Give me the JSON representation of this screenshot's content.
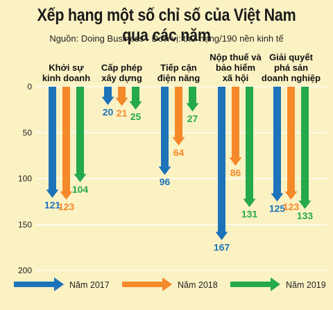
{
  "title": "Xếp hạng một số chỉ số của Việt Nam qua các năm",
  "subtitle": "Nguồn: Doing Business - Đơn vị: thứ hạng/190 nền kinh tế",
  "colors": {
    "Năm 2017": "#1d73b9",
    "Năm 2018": "#f4892a",
    "Năm 2019": "#24a94b",
    "background": "#fbf2c4",
    "grid": "#ffffff"
  },
  "chart_data": {
    "type": "bar",
    "orientation": "vertical-down",
    "categories": [
      "Khởi sự kinh doanh",
      "Cấp phép xây dựng",
      "Tiếp cận điện năng",
      "Nộp thuế và bảo hiểm xã hội",
      "Giải quyết phá sản doanh nghiệp"
    ],
    "category_lines": [
      [
        "Khởi sự",
        "kinh doanh"
      ],
      [
        "Cấp phép",
        "xây dựng"
      ],
      [
        "Tiếp cận",
        "điện năng"
      ],
      [
        "Nộp thuế và",
        "bảo hiểm",
        "xã hội"
      ],
      [
        "Giải quyết",
        "phá sản",
        "doanh nghiệp"
      ]
    ],
    "series": [
      {
        "name": "Năm 2017",
        "values": [
          121,
          20,
          96,
          167,
          125
        ]
      },
      {
        "name": "Năm 2018",
        "values": [
          123,
          21,
          64,
          86,
          123
        ]
      },
      {
        "name": "Năm 2019",
        "values": [
          104,
          25,
          27,
          131,
          133
        ]
      }
    ],
    "yticks": [
      0,
      50,
      100,
      150,
      200
    ],
    "ylim": [
      0,
      200
    ],
    "grid": true,
    "legend_position": "bottom"
  }
}
